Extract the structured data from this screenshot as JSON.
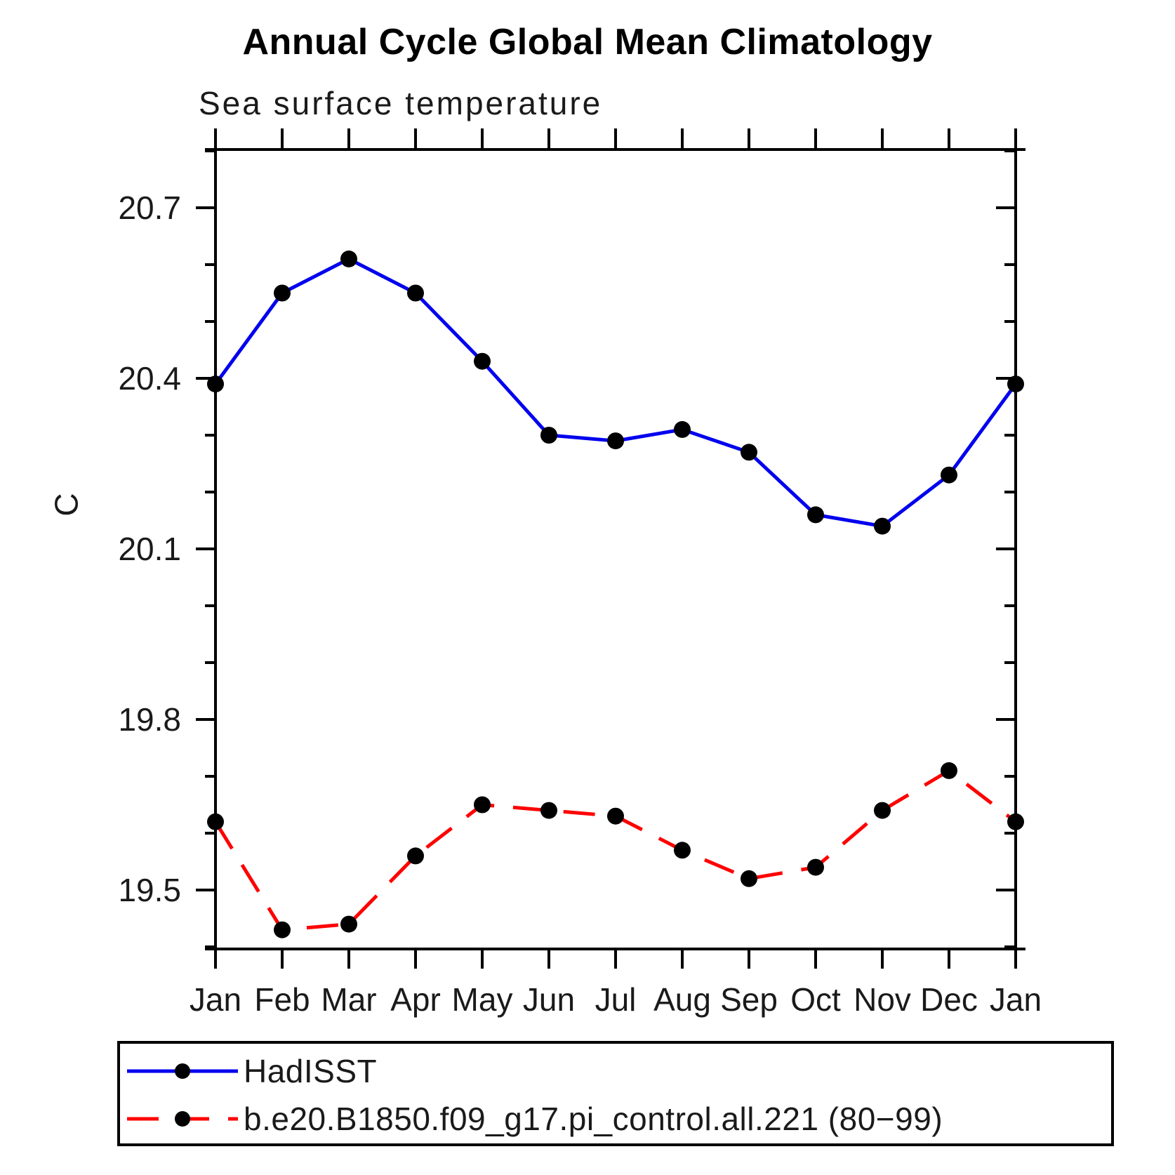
{
  "title": "Annual Cycle Global Mean Climatology",
  "subtitle": "Sea surface temperature",
  "y_axis_label": "C",
  "colors": {
    "hadisst_line": "#0000ee",
    "model_line": "#ff0000",
    "marker": "#000000",
    "axis": "#000000"
  },
  "legend": {
    "entries": [
      {
        "label": "HadISST",
        "color": "#0000ee",
        "style": "solid",
        "marker": "circle"
      },
      {
        "label": "b.e20.B1850.f09_g17.pi_control.all.221 (80−99)",
        "color": "#ff0000",
        "style": "dashed",
        "marker": "circle"
      }
    ]
  },
  "chart_data": {
    "type": "line",
    "title": "Annual Cycle Global Mean Climatology",
    "subtitle": "Sea surface temperature",
    "xlabel": "",
    "ylabel": "C",
    "categories": [
      "Jan",
      "Feb",
      "Mar",
      "Apr",
      "May",
      "Jun",
      "Jul",
      "Aug",
      "Sep",
      "Oct",
      "Nov",
      "Dec",
      "Jan"
    ],
    "series": [
      {
        "name": "HadISST",
        "color": "#0000ee",
        "line_style": "solid",
        "marker": "circle",
        "marker_color": "#000000",
        "values": [
          20.39,
          20.55,
          20.61,
          20.55,
          20.43,
          20.3,
          20.29,
          20.31,
          20.27,
          20.16,
          20.14,
          20.23,
          20.39
        ]
      },
      {
        "name": "b.e20.B1850.f09_g17.pi_control.all.221 (80−99)",
        "color": "#ff0000",
        "line_style": "dashed",
        "marker": "circle",
        "marker_color": "#000000",
        "values": [
          19.62,
          19.43,
          19.44,
          19.56,
          19.65,
          19.64,
          19.63,
          19.57,
          19.52,
          19.54,
          19.64,
          19.71,
          19.62
        ]
      }
    ],
    "ylim": [
      19.4,
      20.8
    ],
    "yticks_major": [
      19.5,
      19.8,
      20.1,
      20.4,
      20.7
    ],
    "ytick_minor_step": 0.1,
    "grid": false,
    "legend_position": "bottom"
  }
}
